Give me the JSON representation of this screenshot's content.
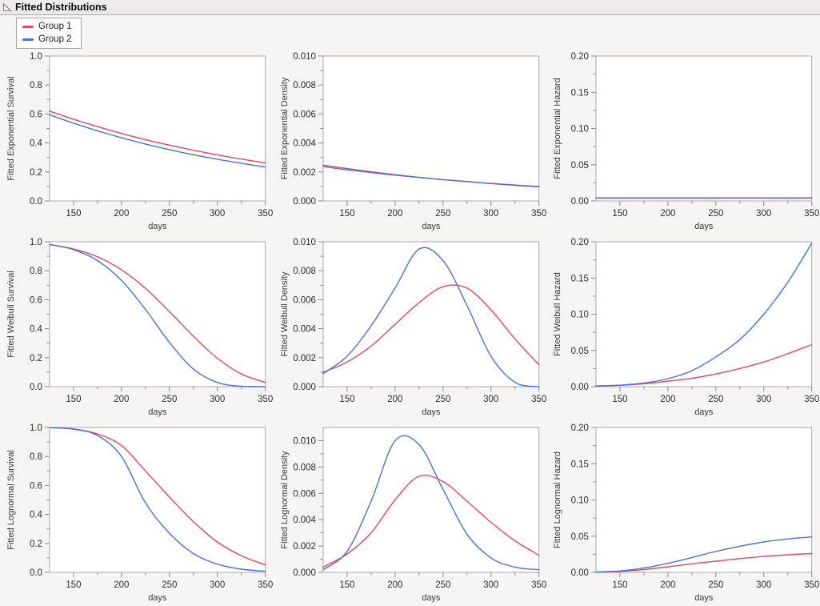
{
  "window": {
    "title": "Fitted Distributions"
  },
  "legend": {
    "items": [
      {
        "label": "Group 1",
        "color": "#e0485c"
      },
      {
        "label": "Group 2",
        "color": "#4a71d6"
      }
    ]
  },
  "chart_data": {
    "type": "line",
    "title": "Fitted Distributions",
    "xlabel": "days",
    "x": [
      125,
      150,
      175,
      200,
      225,
      250,
      275,
      300,
      325,
      350
    ],
    "x_axis": {
      "range": [
        125,
        350
      ],
      "major_ticks": [
        150,
        200,
        250,
        300,
        350
      ],
      "major_labels": [
        "150",
        "200",
        "250",
        "300",
        "350"
      ],
      "minor_ticks": [
        175,
        225,
        275,
        325
      ]
    },
    "legend_entries": [
      "Group 1",
      "Group 2"
    ],
    "legend_position": "top-left",
    "grid": false,
    "plots": [
      {
        "ylabel": "Fitted Exponential Survival",
        "ylim": [
          0,
          1.0
        ],
        "y_axis": {
          "major": [
            0,
            0.2,
            0.4,
            0.6,
            0.8,
            1.0
          ],
          "labels": [
            "0.0",
            "0.2",
            "0.4",
            "0.6",
            "0.8",
            "1.0"
          ],
          "minor": [
            0.1,
            0.3,
            0.5,
            0.7,
            0.9
          ]
        },
        "series": [
          {
            "name": "Group 1",
            "values": [
              0.62,
              0.564,
              0.513,
              0.466,
              0.423,
              0.385,
              0.35,
              0.318,
              0.289,
              0.263
            ]
          },
          {
            "name": "Group 2",
            "values": [
              0.595,
              0.537,
              0.484,
              0.436,
              0.393,
              0.354,
              0.319,
              0.288,
              0.26,
              0.234
            ]
          }
        ]
      },
      {
        "ylabel": "Fitted Exponential Density",
        "ylim": [
          0,
          0.01
        ],
        "y_axis": {
          "major": [
            0,
            0.002,
            0.004,
            0.006,
            0.008,
            0.01
          ],
          "labels": [
            "0.000",
            "0.002",
            "0.004",
            "0.006",
            "0.008",
            "0.010"
          ],
          "minor": [
            0.001,
            0.003,
            0.005,
            0.007,
            0.009
          ]
        },
        "series": [
          {
            "name": "Group 1",
            "values": [
              0.00237,
              0.00215,
              0.00196,
              0.00178,
              0.00162,
              0.00147,
              0.00134,
              0.00121,
              0.0011,
              0.001
            ]
          },
          {
            "name": "Group 2",
            "values": [
              0.00247,
              0.00223,
              0.00201,
              0.00181,
              0.00163,
              0.00147,
              0.00133,
              0.0012,
              0.00108,
              0.00097
            ]
          }
        ]
      },
      {
        "ylabel": "Fitted Exponential Hazard",
        "ylim": [
          0,
          0.2
        ],
        "y_axis": {
          "major": [
            0,
            0.05,
            0.1,
            0.15,
            0.2
          ],
          "labels": [
            "0.00",
            "0.05",
            "0.10",
            "0.15",
            "0.20"
          ],
          "minor": [
            0.025,
            0.075,
            0.125,
            0.175
          ]
        },
        "series": [
          {
            "name": "Group 1",
            "values": [
              0.0038,
              0.0038,
              0.0038,
              0.0038,
              0.0038,
              0.0038,
              0.0038,
              0.0038,
              0.0038,
              0.0038
            ]
          },
          {
            "name": "Group 2",
            "values": [
              0.0042,
              0.0042,
              0.0042,
              0.0042,
              0.0042,
              0.0042,
              0.0042,
              0.0042,
              0.0042,
              0.0042
            ]
          }
        ]
      },
      {
        "ylabel": "Fitted Weibull Survival",
        "ylim": [
          0,
          1.0
        ],
        "y_axis": {
          "major": [
            0,
            0.2,
            0.4,
            0.6,
            0.8,
            1.0
          ],
          "labels": [
            "0.0",
            "0.2",
            "0.4",
            "0.6",
            "0.8",
            "1.0"
          ],
          "minor": [
            0.1,
            0.3,
            0.5,
            0.7,
            0.9
          ]
        },
        "series": [
          {
            "name": "Group 1",
            "values": [
              0.98,
              0.95,
              0.896,
              0.807,
              0.679,
              0.519,
              0.348,
              0.196,
              0.088,
              0.029
            ]
          },
          {
            "name": "Group 2",
            "values": [
              0.982,
              0.946,
              0.87,
              0.733,
              0.533,
              0.306,
              0.122,
              0.029,
              0.003,
              0.0
            ]
          }
        ]
      },
      {
        "ylabel": "Fitted Weibull Density",
        "ylim": [
          0,
          0.01
        ],
        "y_axis": {
          "major": [
            0,
            0.002,
            0.004,
            0.006,
            0.008,
            0.01
          ],
          "labels": [
            "0.000",
            "0.002",
            "0.004",
            "0.006",
            "0.008",
            "0.010"
          ],
          "minor": [
            0.001,
            0.003,
            0.005,
            0.007,
            0.009
          ]
        },
        "series": [
          {
            "name": "Group 1",
            "values": [
              0.001,
              0.0017,
              0.0028,
              0.0043,
              0.0058,
              0.0069,
              0.0068,
              0.0053,
              0.0033,
              0.0015
            ]
          },
          {
            "name": "Group 2",
            "values": [
              0.0009,
              0.0021,
              0.0042,
              0.0068,
              0.0095,
              0.0087,
              0.0056,
              0.0021,
              0.0003,
              0.0
            ]
          }
        ]
      },
      {
        "ylabel": "Fitted Weibull Hazard",
        "ylim": [
          0,
          0.2
        ],
        "y_axis": {
          "major": [
            0,
            0.05,
            0.1,
            0.15,
            0.2
          ],
          "labels": [
            "0.00",
            "0.05",
            "0.10",
            "0.15",
            "0.20"
          ],
          "minor": [
            0.025,
            0.075,
            0.125,
            0.175
          ]
        },
        "series": [
          {
            "name": "Group 1",
            "values": [
              0.001,
              0.002,
              0.004,
              0.0075,
              0.0115,
              0.0175,
              0.025,
              0.034,
              0.0455,
              0.058
            ]
          },
          {
            "name": "Group 2",
            "values": [
              0.001,
              0.002,
              0.005,
              0.011,
              0.022,
              0.041,
              0.065,
              0.1,
              0.144,
              0.198
            ]
          }
        ]
      },
      {
        "ylabel": "Fitted Lognormal Survival",
        "ylim": [
          0,
          1.0
        ],
        "y_axis": {
          "major": [
            0,
            0.2,
            0.4,
            0.6,
            0.8,
            1.0
          ],
          "labels": [
            "0.0",
            "0.2",
            "0.4",
            "0.6",
            "0.8",
            "1.0"
          ],
          "minor": [
            0.1,
            0.3,
            0.5,
            0.7,
            0.9
          ]
        },
        "series": [
          {
            "name": "Group 1",
            "values": [
              0.999,
              0.99,
              0.955,
              0.875,
              0.7,
              0.52,
              0.35,
              0.21,
              0.115,
              0.052
            ]
          },
          {
            "name": "Group 2",
            "values": [
              0.999,
              0.988,
              0.945,
              0.8,
              0.48,
              0.27,
              0.13,
              0.057,
              0.022,
              0.008
            ]
          }
        ]
      },
      {
        "ylabel": "Fitted Lognormal Density",
        "ylim": [
          0,
          0.011
        ],
        "y_axis": {
          "major": [
            0,
            0.002,
            0.004,
            0.006,
            0.008,
            0.01
          ],
          "labels": [
            "0.000",
            "0.002",
            "0.004",
            "0.006",
            "0.008",
            "0.010"
          ],
          "minor": [
            0.001,
            0.003,
            0.005,
            0.007,
            0.009
          ]
        },
        "series": [
          {
            "name": "Group 1",
            "values": [
              0.0004,
              0.0014,
              0.003,
              0.0055,
              0.0073,
              0.0069,
              0.0054,
              0.0038,
              0.0024,
              0.0013
            ]
          },
          {
            "name": "Group 2",
            "values": [
              0.0002,
              0.0016,
              0.0054,
              0.01,
              0.0097,
              0.0063,
              0.0029,
              0.0011,
              0.0004,
              0.0002
            ]
          }
        ]
      },
      {
        "ylabel": "Fitted Lognormal Hazard",
        "ylim": [
          0,
          0.2
        ],
        "y_axis": {
          "major": [
            0,
            0.05,
            0.1,
            0.15,
            0.2
          ],
          "labels": [
            "0.00",
            "0.05",
            "0.10",
            "0.15",
            "0.20"
          ],
          "minor": [
            0.025,
            0.075,
            0.125,
            0.175
          ]
        },
        "series": [
          {
            "name": "Group 1",
            "values": [
              0.0003,
              0.0013,
              0.0038,
              0.0077,
              0.0118,
              0.0155,
              0.019,
              0.022,
              0.0243,
              0.026
            ]
          },
          {
            "name": "Group 2",
            "values": [
              0.0005,
              0.002,
              0.006,
              0.0125,
              0.0205,
              0.029,
              0.036,
              0.042,
              0.0462,
              0.049
            ]
          }
        ]
      }
    ]
  }
}
